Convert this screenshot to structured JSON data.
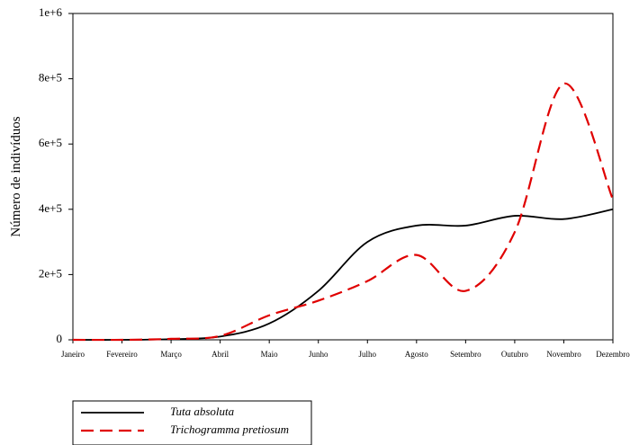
{
  "chart_data": {
    "type": "line",
    "title": "",
    "xlabel": "",
    "ylabel": "Número de indivíduos",
    "categories": [
      "Janeiro",
      "Fevereiro",
      "Março",
      "Abril",
      "Maio",
      "Junho",
      "Julho",
      "Agosto",
      "Setembro",
      "Outubro",
      "Novembro",
      "Dezembro"
    ],
    "yticks": [
      "0",
      "2e+5",
      "4e+5",
      "6e+5",
      "8e+5",
      "1e+6"
    ],
    "ylim": [
      0,
      1000000
    ],
    "grid": false,
    "legend_position": "bottom-left",
    "series": [
      {
        "name": "Tuta absoluta",
        "color": "#000000",
        "style": "solid",
        "values": [
          0,
          0,
          2000,
          10000,
          50000,
          150000,
          300000,
          350000,
          350000,
          380000,
          370000,
          400000
        ]
      },
      {
        "name": "Trichogramma pretiosum",
        "color": "#e00000",
        "style": "dashed",
        "values": [
          0,
          0,
          3000,
          12000,
          75000,
          120000,
          180000,
          260000,
          150000,
          330000,
          785000,
          430000
        ]
      }
    ]
  }
}
